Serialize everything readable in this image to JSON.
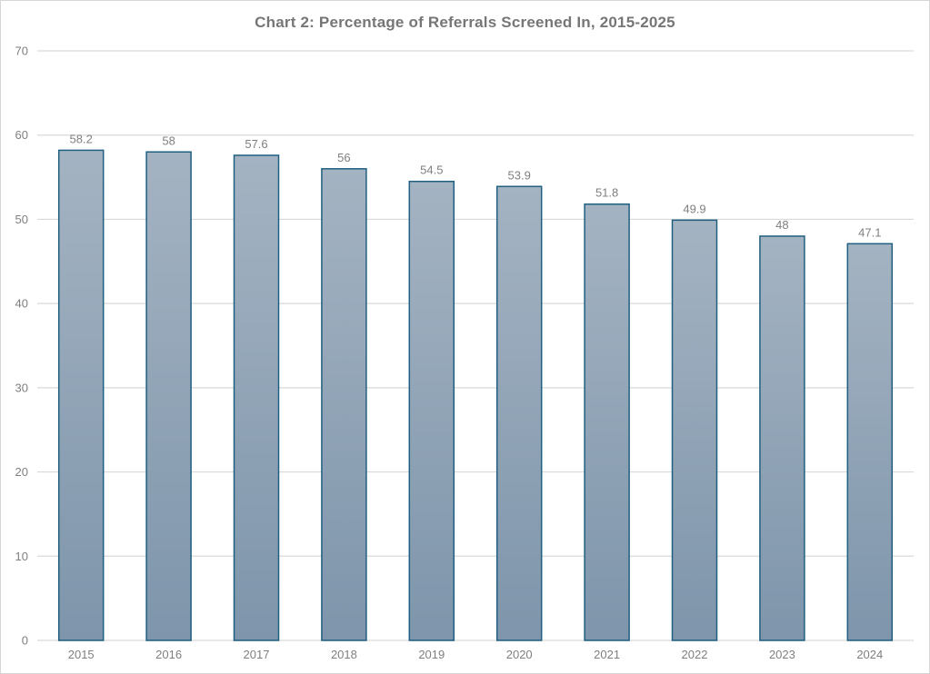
{
  "chart_data": {
    "type": "bar",
    "title": "Chart 2: Percentage of Referrals Screened In, 2015-2025",
    "categories": [
      "2015",
      "2016",
      "2017",
      "2018",
      "2019",
      "2020",
      "2021",
      "2022",
      "2023",
      "2024"
    ],
    "values": [
      58.2,
      58,
      57.6,
      56,
      54.5,
      53.9,
      51.8,
      49.9,
      48,
      47.1
    ],
    "data_labels": [
      "58.2",
      "58",
      "57.6",
      "56",
      "54.5",
      "53.9",
      "51.8",
      "49.9",
      "48",
      "47.1"
    ],
    "xlabel": "",
    "ylabel": "",
    "ylim": [
      0,
      70
    ],
    "yticks": [
      0,
      10,
      20,
      30,
      40,
      50,
      60,
      70
    ],
    "grid": true,
    "legend_position": "none",
    "colors": {
      "bar_fill_top": "#a4b3c2",
      "bar_fill_bottom": "#7e95ab",
      "bar_border": "#1f5f80",
      "gridline": "#d9d9d9",
      "axis_line": "#d9d9d9",
      "label_text": "#7f7f7f",
      "title_text": "#767676",
      "frame_border": "#d6d6d6",
      "background": "#ffffff"
    }
  }
}
